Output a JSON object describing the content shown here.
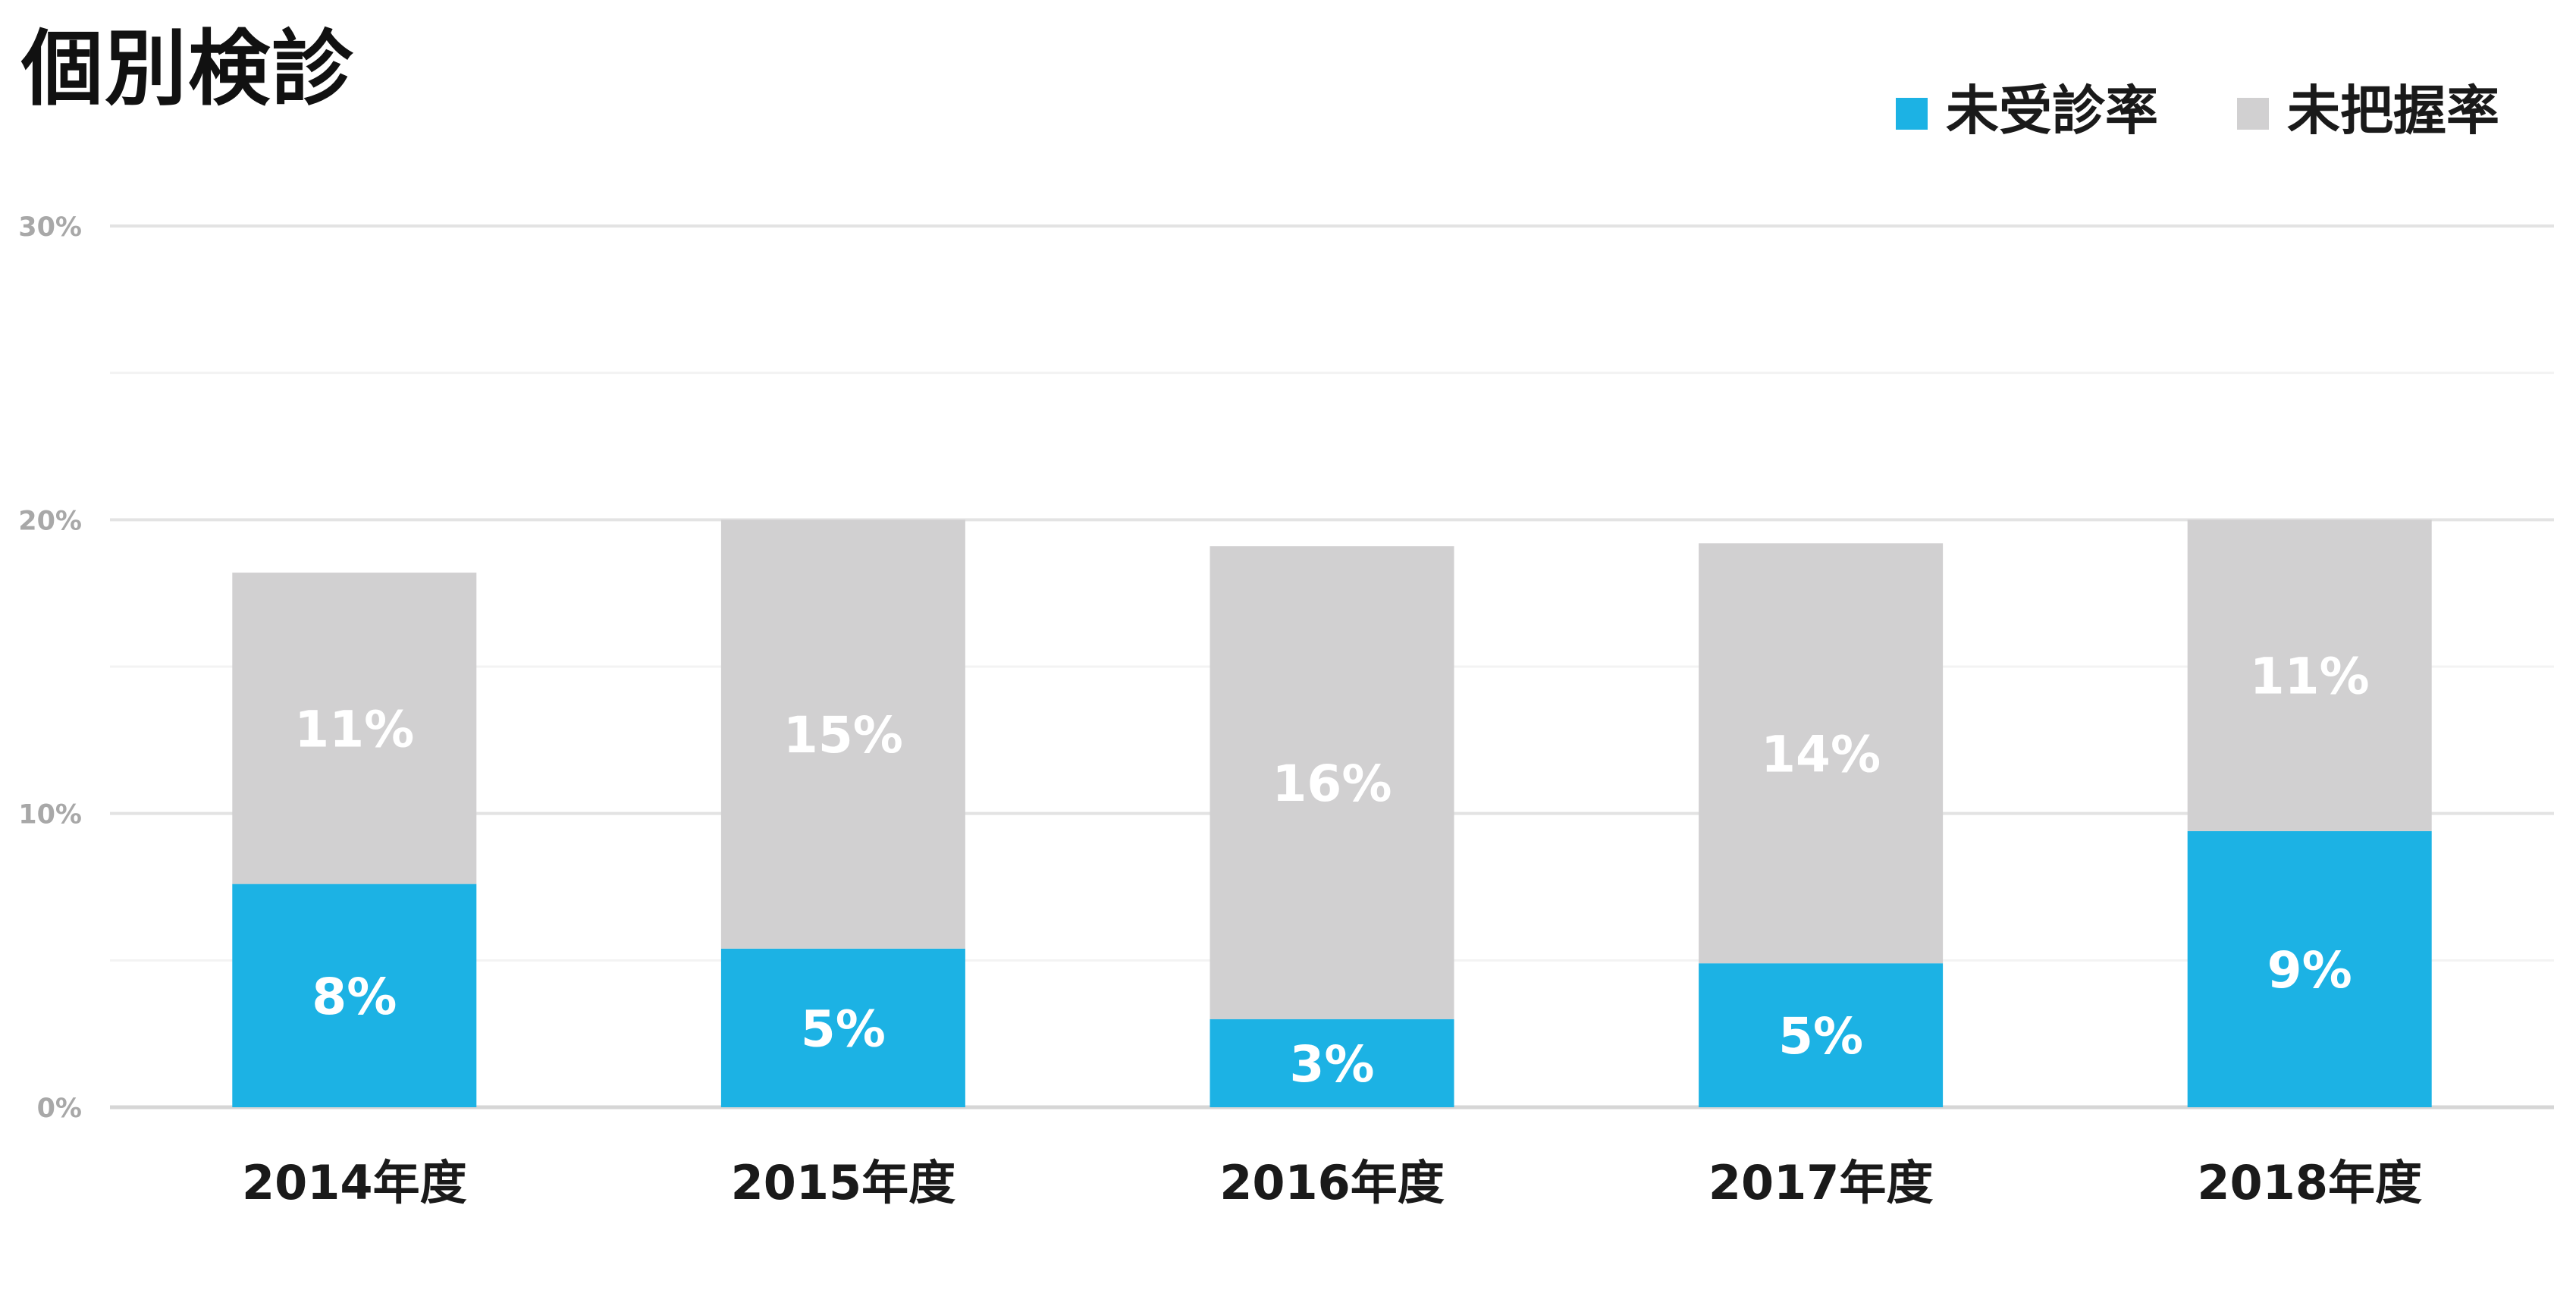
{
  "chart_data": {
    "type": "bar",
    "stacked": true,
    "title": "個別検診",
    "categories": [
      "2014年度",
      "2015年度",
      "2016年度",
      "2017年度",
      "2018年度"
    ],
    "series": [
      {
        "name": "未受診率",
        "color": "#1cb2e4",
        "values": [
          7.6,
          5.4,
          3.0,
          4.9,
          9.4
        ],
        "labels": [
          "8%",
          "5%",
          "3%",
          "5%",
          "9%"
        ]
      },
      {
        "name": "未把握率",
        "color": "#d1d0d1",
        "values": [
          10.6,
          14.6,
          16.1,
          14.3,
          10.6
        ],
        "labels": [
          "11%",
          "15%",
          "16%",
          "14%",
          "11%"
        ]
      }
    ],
    "ylim": [
      0,
      30
    ],
    "yticks": [
      0,
      10,
      20,
      30
    ],
    "ytick_labels": [
      "0%",
      "10%",
      "20%",
      "30%"
    ],
    "grid": true,
    "legend_position": "top-right",
    "xlabel": "",
    "ylabel": ""
  }
}
